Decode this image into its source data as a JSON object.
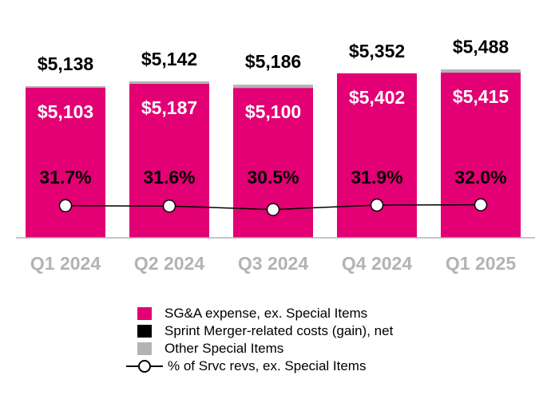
{
  "chart_data": {
    "type": "bar",
    "categories": [
      "Q1 2024",
      "Q2 2024",
      "Q3 2024",
      "Q4 2024",
      "Q1 2025"
    ],
    "series": [
      {
        "name": "SG&A expense, ex. Special Items",
        "values": [
          5103,
          5187,
          5100,
          5402,
          5415
        ],
        "labels": [
          "$5,103",
          "$5,187",
          "$5,100",
          "$5,402",
          "$5,415"
        ],
        "color": "#e20074"
      },
      {
        "name": "Sprint Merger-related costs (gain), net",
        "color": "#000000"
      },
      {
        "name": "Other Special Items",
        "color": "#b3b3b3"
      },
      {
        "name": "% of Srvc revs, ex. Special Items",
        "type": "line",
        "values": [
          31.7,
          31.6,
          30.5,
          31.9,
          32.0
        ],
        "labels": [
          "31.7%",
          "31.6%",
          "30.5%",
          "31.9%",
          "32.0%"
        ]
      }
    ],
    "totals": [
      5138,
      5142,
      5186,
      5352,
      5488
    ],
    "total_labels": [
      "$5,138",
      "$5,142",
      "$5,186",
      "$5,352",
      "$5,488"
    ],
    "legend_position": "bottom",
    "grid": false,
    "tick_color": "#b3b3b3"
  }
}
